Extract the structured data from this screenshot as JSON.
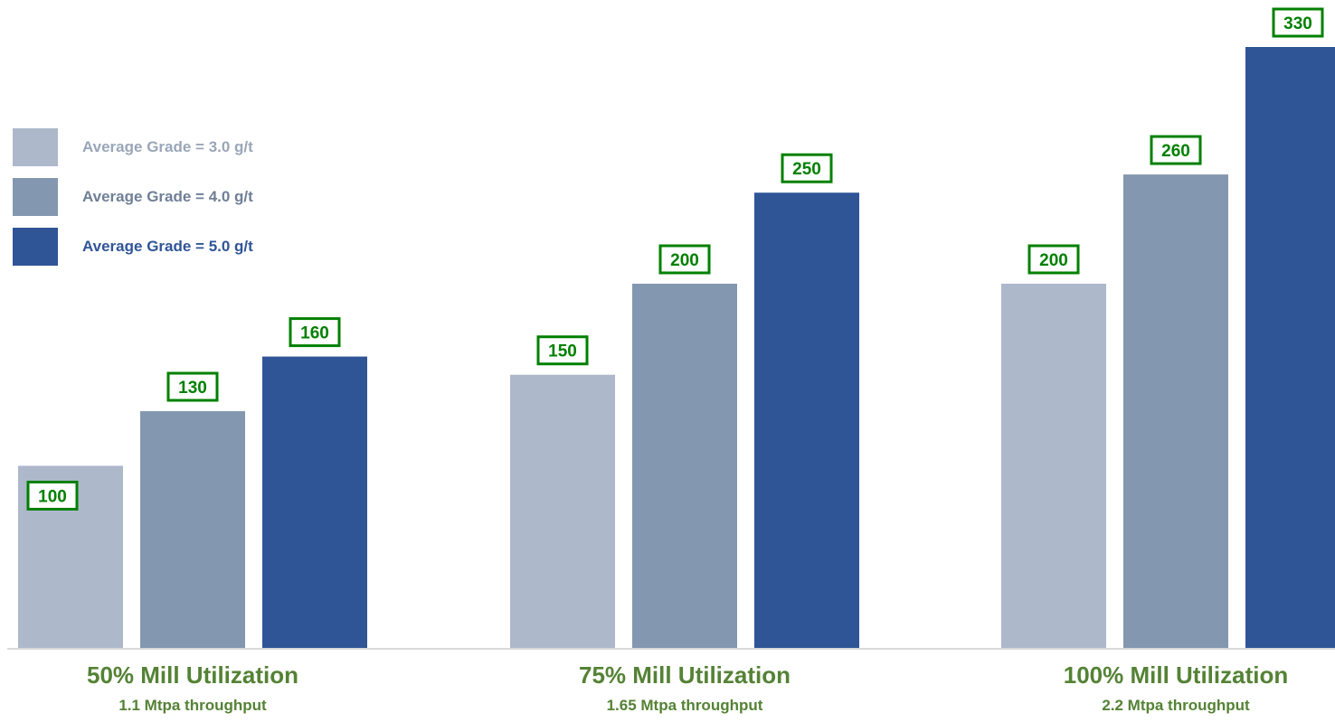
{
  "chart_data": {
    "type": "bar",
    "categories": [
      {
        "title": "50% Mill Utilization",
        "subtitle": "1.1 Mtpa throughput"
      },
      {
        "title": "75% Mill Utilization",
        "subtitle": "1.65 Mtpa throughput"
      },
      {
        "title": "100% Mill Utilization",
        "subtitle": "2.2 Mtpa throughput"
      }
    ],
    "series": [
      {
        "name": "Average Grade = 3.0 g/t",
        "color": "#adb8cb",
        "values": [
          100,
          150,
          200
        ]
      },
      {
        "name": "Average Grade = 4.0 g/t",
        "color": "#8497b0",
        "values": [
          130,
          200,
          260
        ]
      },
      {
        "name": "Average Grade = 5.0 g/t",
        "color": "#2f5597",
        "values": [
          160,
          250,
          330
        ]
      }
    ],
    "ylim": [
      0,
      330
    ],
    "grid": false,
    "legend_position": "top-left",
    "label_color": "#008000",
    "category_title_color": "#548235",
    "category_subtitle_color": "#548235",
    "axis_color": "#d9d9d9",
    "legend_text_colors": [
      "#9aa6b8",
      "#6f7f96",
      "#2f5597"
    ]
  }
}
